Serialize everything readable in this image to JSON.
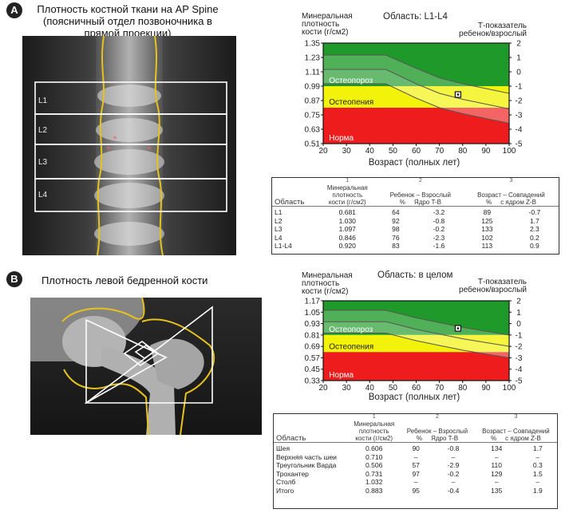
{
  "panel_a": {
    "badge": "A",
    "title_line1": "Плотность костной ткани на AP Spine",
    "title_line2": "(поясничный отдел позвоночника в",
    "title_line3": "прямой проекции)",
    "scan_labels": [
      "L1",
      "L2",
      "L3",
      "L4"
    ],
    "chart": {
      "ylabel_line1": "Минеральная",
      "ylabel_line2": "плотность",
      "ylabel_line3": "кости (г/см2)",
      "region_title": "Область: L1-L4",
      "right_label_line1": "Т-показатель",
      "right_label_line2": "ребенок/взрослый",
      "xlabel": "Возраст (полных лет)",
      "zone_labels": {
        "norm": "Норма",
        "osteopenia": "Остеопения",
        "osteoporosis": "Остеопороз"
      }
    },
    "table": {
      "col_numbers": [
        "1",
        "2",
        "3"
      ],
      "headers": {
        "area": "Область",
        "bmd_line1": "Минеральная",
        "bmd_line2": "плотность",
        "bmd_line3": "кости (г/см2)",
        "ya_line1": "Ребенок – Взрослый",
        "ya_line2": "%     Ядро T-B",
        "am_line1": "Возраст – Совпадений",
        "am_line2": "%     с ядром Z-B"
      },
      "rows": [
        {
          "area": "L1",
          "bmd": "0.681",
          "ya_pct": "64",
          "t": "-3.2",
          "am_pct": "89",
          "z": "-0.7"
        },
        {
          "area": "L2",
          "bmd": "1.030",
          "ya_pct": "92",
          "t": "-0.8",
          "am_pct": "125",
          "z": "1.7"
        },
        {
          "area": "L3",
          "bmd": "1.097",
          "ya_pct": "98",
          "t": "-0.2",
          "am_pct": "133",
          "z": "2.3"
        },
        {
          "area": "L4",
          "bmd": "0.846",
          "ya_pct": "76",
          "t": "-2.3",
          "am_pct": "102",
          "z": "0.2"
        },
        {
          "area": "L1-L4",
          "bmd": "0.920",
          "ya_pct": "83",
          "t": "-1.6",
          "am_pct": "113",
          "z": "0.9"
        }
      ]
    }
  },
  "panel_b": {
    "badge": "B",
    "title": "Плотность левой бедренной кости",
    "chart": {
      "ylabel_line1": "Минеральная",
      "ylabel_line2": "плотность",
      "ylabel_line3": "кости (г/см2)",
      "region_title": "Область: в целом",
      "right_label_line1": "Т-показатель",
      "right_label_line2": "ребенок/взрослый",
      "xlabel": "Возраст (полных лет)",
      "zone_labels": {
        "norm": "Норма",
        "osteopenia": "Остеопения",
        "osteoporosis": "Остеопороз"
      }
    },
    "table": {
      "col_numbers": [
        "1",
        "2",
        "3"
      ],
      "headers": {
        "area": "Область",
        "bmd_line1": "Минеральная",
        "bmd_line2": "плотность",
        "bmd_line3": "кости (г/см2)",
        "ya_line1": "Ребенок – Взрослый",
        "ya_line2": "%     Ядро T-B",
        "am_line1": "Возраст – Совпадений",
        "am_line2": "%     с ядром Z-B"
      },
      "rows": [
        {
          "area": "Шея",
          "bmd": "0.606",
          "ya_pct": "90",
          "t": "-0.8",
          "am_pct": "134",
          "z": "1.7"
        },
        {
          "area": "Верхняя часть шеи",
          "bmd": "0.710",
          "ya_pct": "–",
          "t": "–",
          "am_pct": "–",
          "z": "–"
        },
        {
          "area": "Треугольник Варда",
          "bmd": "0.506",
          "ya_pct": "57",
          "t": "-2.9",
          "am_pct": "110",
          "z": "0.3"
        },
        {
          "area": "Трохантер",
          "bmd": "0.731",
          "ya_pct": "97",
          "t": "-0.2",
          "am_pct": "129",
          "z": "1.5"
        },
        {
          "area": "Столб",
          "bmd": "1.032",
          "ya_pct": "–",
          "t": "–",
          "am_pct": "–",
          "z": "–"
        },
        {
          "area": "Итого",
          "bmd": "0.883",
          "ya_pct": "95",
          "t": "-0.4",
          "am_pct": "135",
          "z": "1.9"
        }
      ]
    }
  },
  "chart_data": [
    {
      "type": "area",
      "title": "Область: L1-L4",
      "xlabel": "Возраст (полных лет)",
      "ylabel": "Минеральная плотность кости (г/см2)",
      "y2label": "Т-показатель ребенок/взрослый",
      "x_ticks": [
        20,
        30,
        40,
        50,
        60,
        70,
        80,
        90,
        100
      ],
      "y_ticks": [
        1.35,
        1.23,
        1.11,
        0.99,
        0.87,
        0.75,
        0.63,
        0.51
      ],
      "y2_ticks": [
        2,
        1,
        0,
        -1,
        -2,
        -3,
        -4,
        -5
      ],
      "xlim": [
        20,
        100
      ],
      "ylim": [
        0.51,
        1.35
      ],
      "zones": [
        {
          "name": "Норма",
          "color": "#1f9a2a",
          "from": 0.99,
          "to": 1.35
        },
        {
          "name": "Остеопения",
          "color": "#f2f20a",
          "from": 0.81,
          "to": 0.99
        },
        {
          "name": "Остеопороз",
          "color": "#ee1c1c",
          "from": 0.51,
          "to": 0.81
        }
      ],
      "reference_curves": {
        "x": [
          20,
          47,
          60,
          70,
          80,
          90,
          100
        ],
        "upper": [
          1.25,
          1.25,
          1.14,
          1.06,
          1.01,
          0.97,
          0.93
        ],
        "middle": [
          1.13,
          1.13,
          1.01,
          0.93,
          0.88,
          0.84,
          0.8
        ],
        "lower": [
          1.01,
          1.01,
          0.89,
          0.81,
          0.76,
          0.72,
          0.68
        ]
      },
      "patient_point": {
        "x": 78,
        "y": 0.92
      }
    },
    {
      "type": "area",
      "title": "Область: в целом",
      "xlabel": "Возраст (полных лет)",
      "ylabel": "Минеральная плотность кости (г/см2)",
      "y2label": "Т-показатель ребенок/взрослый",
      "x_ticks": [
        20,
        30,
        40,
        50,
        60,
        70,
        80,
        90,
        100
      ],
      "y_ticks": [
        1.17,
        1.05,
        0.93,
        0.81,
        0.69,
        0.57,
        0.45,
        0.33
      ],
      "y2_ticks": [
        2,
        1,
        0,
        -1,
        -2,
        -3,
        -4,
        -5
      ],
      "xlim": [
        20,
        100
      ],
      "ylim": [
        0.33,
        1.17
      ],
      "zones": [
        {
          "name": "Норма",
          "color": "#1f9a2a",
          "from": 0.81,
          "to": 1.17
        },
        {
          "name": "Остеопения",
          "color": "#f2f20a",
          "from": 0.63,
          "to": 0.81
        },
        {
          "name": "Остеопороз",
          "color": "#ee1c1c",
          "from": 0.33,
          "to": 0.63
        }
      ],
      "reference_curves": {
        "x": [
          20,
          47,
          60,
          70,
          80,
          90,
          100
        ],
        "upper": [
          1.07,
          1.07,
          0.99,
          0.94,
          0.89,
          0.85,
          0.81
        ],
        "middle": [
          0.95,
          0.95,
          0.87,
          0.82,
          0.77,
          0.73,
          0.69
        ],
        "lower": [
          0.83,
          0.83,
          0.75,
          0.7,
          0.65,
          0.61,
          0.57
        ]
      },
      "patient_point": {
        "x": 78,
        "y": 0.88
      }
    }
  ]
}
